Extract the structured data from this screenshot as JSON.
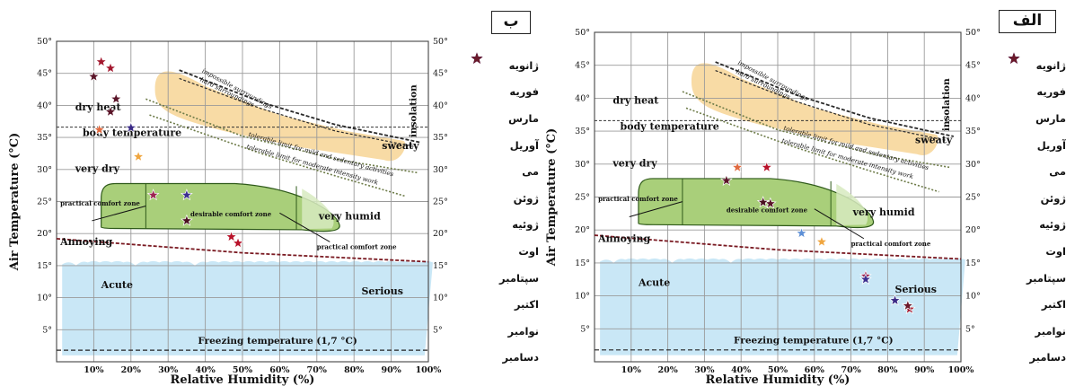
{
  "months": [
    "ژانویه",
    "فوریه",
    "مارس",
    "آوریل",
    "می",
    "ژوئن",
    "ژوئیه",
    "اوت",
    "سپتامبر",
    "اکتبر",
    "نوامبر",
    "دسامبر"
  ],
  "colors": {
    "month_stars": [
      "#a3172e",
      "#3a2a86",
      "#9b2350",
      "#f0a640",
      "#5a1428",
      "#5a1428",
      "#e06a40",
      "#b8122a",
      "#4a0f1f",
      "#5d8fd6",
      "#3c2f8f",
      "#6b1a2a"
    ],
    "comfort_zone": "#a9cf7a",
    "cold_band": "#bfe3f5",
    "hot_band": "#f7d79b"
  },
  "labels": {
    "dry_heat": "dry heat",
    "body_temperature": "body temperature",
    "very_dry": "very dry",
    "practical_comfort_zone_left": "practical comfort zone",
    "desirable_comfort_zone": "desirable comfort zone",
    "practical_comfort_zone_right": "practical comfort zone",
    "very_humid": "very humid",
    "annoying": "Annoying",
    "acute": "Acute",
    "serious": "Serious",
    "freezing": "Freezing temperature (1,7 °C)",
    "sweaty": "sweaty",
    "insolation": "insolation",
    "impossible_surroundings": "impossible surroundings",
    "hard_surroundings": "hard surroundings",
    "tolerable_mild": "tolerable limit for mild and sedentary activities",
    "tolerable_moderate": "tolerable limit for moderate intensity work"
  },
  "chart_data": [
    {
      "type": "scatter",
      "panel_label": "ب",
      "xlabel": "Relative Humidity (%)",
      "ylabel": "Air Temperature (°C)",
      "xlim": [
        0,
        100
      ],
      "ylim": [
        0,
        50
      ],
      "x_ticks": [
        "10%",
        "20%",
        "30%",
        "40%",
        "50%",
        "60%",
        "70%",
        "80%",
        "90%",
        "100%"
      ],
      "y_ticks": [
        "5°",
        "10°",
        "15°",
        "20°",
        "25°",
        "30°",
        "35°",
        "40°",
        "45°",
        "50°"
      ],
      "grid": true,
      "legend_position": "right",
      "points": [
        {
          "month": "ژانویه",
          "x": 12,
          "y": 46.8
        },
        {
          "month": "ژانویه",
          "x": 14.5,
          "y": 45.8
        },
        {
          "month": "فوریه",
          "x": 20,
          "y": 36.5
        },
        {
          "month": "مارس",
          "x": 26,
          "y": 26
        },
        {
          "month": "آوریل",
          "x": 22,
          "y": 32
        },
        {
          "month": "می",
          "x": 10,
          "y": 44.5
        },
        {
          "month": "می",
          "x": 16,
          "y": 41
        },
        {
          "month": "ژوئن",
          "x": 14.5,
          "y": 39
        },
        {
          "month": "ژوئیه",
          "x": 11.5,
          "y": 36.2
        },
        {
          "month": "اوت",
          "x": 47,
          "y": 19.5
        },
        {
          "month": "اوت",
          "x": 48.8,
          "y": 18.5
        },
        {
          "month": "سپتامبر",
          "x": 35,
          "y": 22
        },
        {
          "month": "نوامبر",
          "x": 35,
          "y": 26
        }
      ]
    },
    {
      "type": "scatter",
      "panel_label": "الف",
      "xlabel": "Relative Humidity (%)",
      "ylabel": "Air Temperature (°C)",
      "xlim": [
        0,
        100
      ],
      "ylim": [
        0,
        50
      ],
      "x_ticks": [
        "10%",
        "20%",
        "30%",
        "40%",
        "50%",
        "60%",
        "70%",
        "80%",
        "90%",
        "100%"
      ],
      "y_ticks": [
        "5°",
        "10°",
        "15°",
        "20°",
        "25°",
        "30°",
        "35°",
        "40°",
        "45°",
        "50°"
      ],
      "grid": true,
      "legend_position": "right",
      "points": [
        {
          "month": "ژانویه",
          "x": 86,
          "y": 8
        },
        {
          "month": "فوریه",
          "x": 82,
          "y": 9.3
        },
        {
          "month": "مارس",
          "x": 74,
          "y": 13
        },
        {
          "month": "آوریل",
          "x": 62,
          "y": 18.2
        },
        {
          "month": "می",
          "x": 36,
          "y": 27.5
        },
        {
          "month": "ژوئن",
          "x": 48,
          "y": 24
        },
        {
          "month": "ژوئیه",
          "x": 39,
          "y": 29.5
        },
        {
          "month": "اوت",
          "x": 47,
          "y": 29.5
        },
        {
          "month": "سپتامبر",
          "x": 46,
          "y": 24.2
        },
        {
          "month": "اکتبر",
          "x": 56.5,
          "y": 19.5
        },
        {
          "month": "نوامبر",
          "x": 74,
          "y": 12.5
        },
        {
          "month": "دسامبر",
          "x": 85.5,
          "y": 8.5
        }
      ]
    }
  ]
}
